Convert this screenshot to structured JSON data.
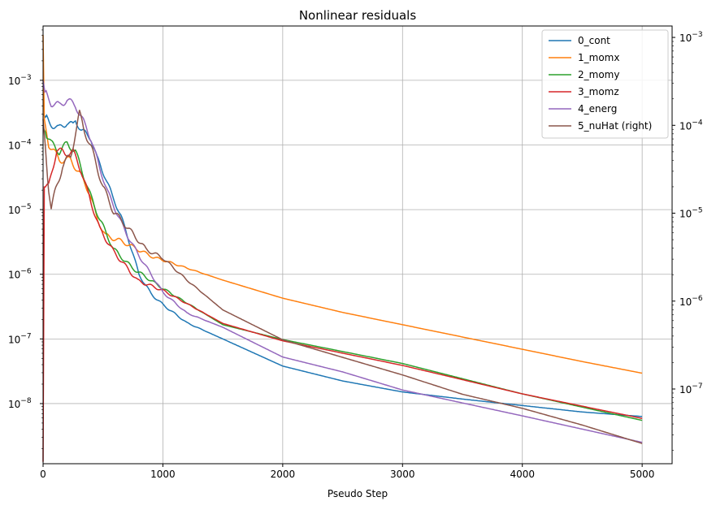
{
  "chart_data": {
    "type": "line",
    "title": "Nonlinear residuals",
    "xlabel": "Pseudo Step",
    "ylabel": "",
    "xlim": [
      0,
      5250
    ],
    "ylim_left_log10": [
      -8.93,
      -2.16
    ],
    "ylim_right_log10": [
      -7.85,
      -2.87
    ],
    "yscale": "log",
    "grid": true,
    "legend_position": "top-right",
    "x_ticks": [
      "0",
      "1000",
      "2000",
      "3000",
      "4000",
      "5000"
    ],
    "x_tick_values": [
      0,
      1000,
      2000,
      3000,
      4000,
      5000
    ],
    "left_y_ticks": [
      {
        "base": "10",
        "exp": "−3",
        "value": -3
      },
      {
        "base": "10",
        "exp": "−4",
        "value": -4
      },
      {
        "base": "10",
        "exp": "−5",
        "value": -5
      },
      {
        "base": "10",
        "exp": "−6",
        "value": -6
      },
      {
        "base": "10",
        "exp": "−7",
        "value": -7
      },
      {
        "base": "10",
        "exp": "−8",
        "value": -8
      }
    ],
    "right_y_ticks": [
      {
        "base": "10",
        "exp": "−3",
        "value": -3
      },
      {
        "base": "10",
        "exp": "−4",
        "value": -4
      },
      {
        "base": "10",
        "exp": "−5",
        "value": -5
      },
      {
        "base": "10",
        "exp": "−6",
        "value": -6
      },
      {
        "base": "10",
        "exp": "−7",
        "value": -7
      }
    ],
    "series": [
      {
        "name": "0_cont",
        "color": "#1f77b4",
        "axis": "left",
        "points_log10": [
          [
            0,
            -3.52
          ],
          [
            50,
            -3.65
          ],
          [
            130,
            -3.75
          ],
          [
            200,
            -3.65
          ],
          [
            250,
            -3.7
          ],
          [
            270,
            -3.62
          ],
          [
            320,
            -3.77
          ],
          [
            400,
            -3.9
          ],
          [
            450,
            -4.2
          ],
          [
            520,
            -4.5
          ],
          [
            580,
            -4.8
          ],
          [
            650,
            -5.1
          ],
          [
            720,
            -5.5
          ],
          [
            800,
            -6.0
          ],
          [
            900,
            -6.3
          ],
          [
            1000,
            -6.47
          ],
          [
            1200,
            -6.75
          ],
          [
            1500,
            -7.0
          ],
          [
            2000,
            -7.42
          ],
          [
            2500,
            -7.65
          ],
          [
            3000,
            -7.82
          ],
          [
            3500,
            -7.93
          ],
          [
            4000,
            -8.03
          ],
          [
            4500,
            -8.13
          ],
          [
            5000,
            -8.2
          ]
        ]
      },
      {
        "name": "1_momx",
        "color": "#ff7f0e",
        "axis": "left",
        "points_log10": [
          [
            0,
            -2.3
          ],
          [
            10,
            -3.6
          ],
          [
            47,
            -3.98
          ],
          [
            135,
            -4.23
          ],
          [
            230,
            -4.23
          ],
          [
            318,
            -4.48
          ],
          [
            385,
            -4.73
          ],
          [
            453,
            -5.15
          ],
          [
            520,
            -5.4
          ],
          [
            655,
            -5.49
          ],
          [
            925,
            -5.74
          ],
          [
            1000,
            -5.78
          ],
          [
            1500,
            -6.09
          ],
          [
            2000,
            -6.37
          ],
          [
            2500,
            -6.59
          ],
          [
            3000,
            -6.78
          ],
          [
            3500,
            -6.97
          ],
          [
            4000,
            -7.16
          ],
          [
            4500,
            -7.35
          ],
          [
            5000,
            -7.53
          ]
        ]
      },
      {
        "name": "2_momy",
        "color": "#2ca02c",
        "axis": "left",
        "points_log10": [
          [
            0,
            -3.73
          ],
          [
            68,
            -3.98
          ],
          [
            135,
            -4.1
          ],
          [
            200,
            -3.98
          ],
          [
            270,
            -4.1
          ],
          [
            318,
            -4.36
          ],
          [
            385,
            -4.73
          ],
          [
            473,
            -5.15
          ],
          [
            588,
            -5.61
          ],
          [
            743,
            -5.9
          ],
          [
            1000,
            -6.22
          ],
          [
            1500,
            -6.78
          ],
          [
            2000,
            -7.01
          ],
          [
            3000,
            -7.38
          ],
          [
            4000,
            -7.85
          ],
          [
            5000,
            -8.26
          ]
        ]
      },
      {
        "name": "3_momz",
        "color": "#d62728",
        "axis": "left",
        "points_log10": [
          [
            0,
            -8.9
          ],
          [
            10,
            -4.65
          ],
          [
            47,
            -4.65
          ],
          [
            115,
            -4.06
          ],
          [
            182,
            -4.14
          ],
          [
            250,
            -4.1
          ],
          [
            318,
            -4.4
          ],
          [
            385,
            -4.8
          ],
          [
            473,
            -5.3
          ],
          [
            588,
            -5.65
          ],
          [
            790,
            -6.1
          ],
          [
            1000,
            -6.25
          ],
          [
            1500,
            -6.76
          ],
          [
            2000,
            -7.03
          ],
          [
            3000,
            -7.41
          ],
          [
            4000,
            -7.85
          ],
          [
            5000,
            -8.23
          ]
        ]
      },
      {
        "name": "4_energ",
        "color": "#9467bd",
        "axis": "left",
        "points_log10": [
          [
            0,
            -3.0
          ],
          [
            15,
            -3.18
          ],
          [
            68,
            -3.35
          ],
          [
            135,
            -3.39
          ],
          [
            200,
            -3.3
          ],
          [
            270,
            -3.39
          ],
          [
            338,
            -3.64
          ],
          [
            405,
            -3.93
          ],
          [
            473,
            -4.36
          ],
          [
            540,
            -4.73
          ],
          [
            608,
            -5.02
          ],
          [
            703,
            -5.4
          ],
          [
            810,
            -5.74
          ],
          [
            1000,
            -6.28
          ],
          [
            1200,
            -6.6
          ],
          [
            1500,
            -6.82
          ],
          [
            2000,
            -7.28
          ],
          [
            2500,
            -7.51
          ],
          [
            3000,
            -7.79
          ],
          [
            4000,
            -8.19
          ],
          [
            5000,
            -8.6
          ]
        ]
      },
      {
        "name": "5_nuHat (right)",
        "color": "#8c564b",
        "axis": "right",
        "points_log10": [
          [
            0,
            -3.93
          ],
          [
            47,
            -4.7
          ],
          [
            68,
            -4.95
          ],
          [
            115,
            -4.7
          ],
          [
            162,
            -4.45
          ],
          [
            230,
            -4.36
          ],
          [
            270,
            -4.08
          ],
          [
            304,
            -3.87
          ],
          [
            338,
            -4.03
          ],
          [
            405,
            -4.27
          ],
          [
            500,
            -4.7
          ],
          [
            588,
            -4.98
          ],
          [
            703,
            -5.16
          ],
          [
            858,
            -5.41
          ],
          [
            1000,
            -5.51
          ],
          [
            1200,
            -5.76
          ],
          [
            1500,
            -6.1
          ],
          [
            2000,
            -6.44
          ],
          [
            2500,
            -6.64
          ],
          [
            3000,
            -6.84
          ],
          [
            3500,
            -7.06
          ],
          [
            4000,
            -7.22
          ],
          [
            4500,
            -7.41
          ],
          [
            5000,
            -7.62
          ]
        ]
      }
    ]
  }
}
